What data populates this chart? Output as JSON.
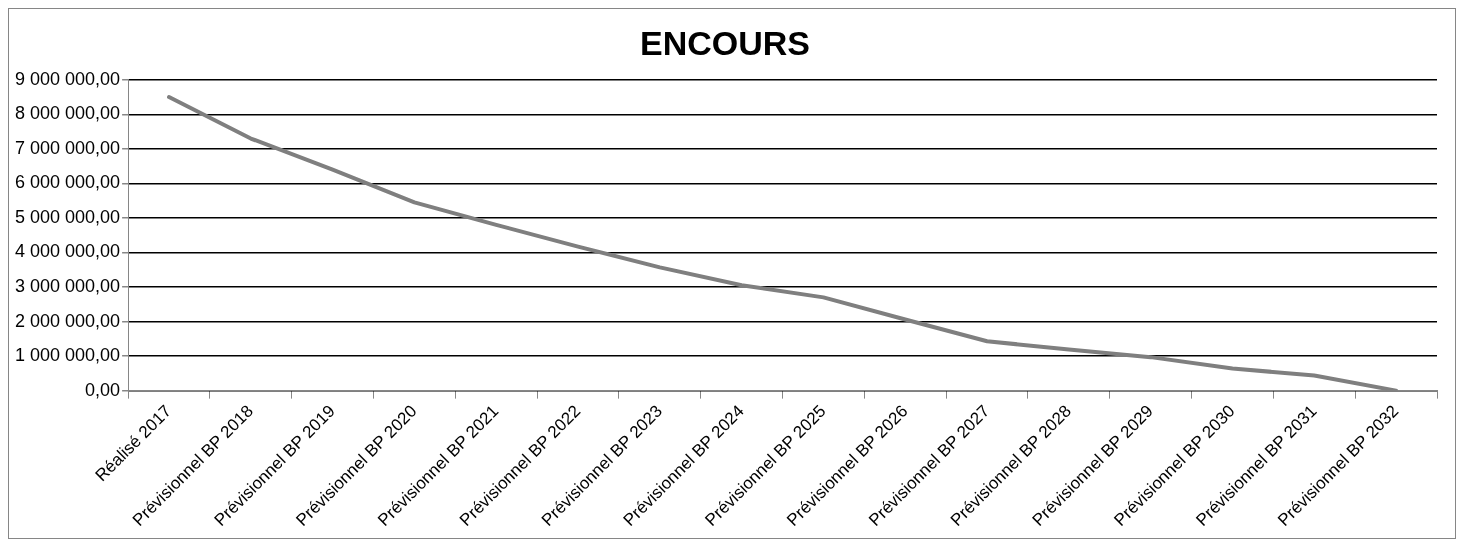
{
  "chart_data": {
    "type": "line",
    "title": "ENCOURS",
    "categories": [
      "Réalisé 2017",
      "Prévisionnel BP 2018",
      "Prévisionnel BP 2019",
      "Prévisionnel BP 2020",
      "Prévisionnel BP 2021",
      "Prévisionnel BP 2022",
      "Prévisionnel BP 2023",
      "Prévisionnel BP 2024",
      "Prévisionnel BP 2025",
      "Prévisionnel BP 2026",
      "Prévisionnel BP 2027",
      "Prévisionnel BP 2028",
      "Prévisionnel BP 2029",
      "Prévisionnel BP 2030",
      "Prévisionnel BP 2031",
      "Prévisionnel BP 2032"
    ],
    "series": [
      {
        "color": "#7f7f7f",
        "values": [
          8500000,
          7300000,
          6400000,
          5450000,
          4800000,
          4170000,
          3570000,
          3050000,
          2700000,
          2060000,
          1430000,
          1190000,
          970000,
          640000,
          440000,
          0
        ]
      }
    ],
    "ylim": [
      0,
      9000000
    ],
    "yticks": [
      {
        "value": 0,
        "label": "0,00"
      },
      {
        "value": 1000000,
        "label": "1 000 000,00"
      },
      {
        "value": 2000000,
        "label": "2 000 000,00"
      },
      {
        "value": 3000000,
        "label": "3 000 000,00"
      },
      {
        "value": 4000000,
        "label": "4 000 000,00"
      },
      {
        "value": 5000000,
        "label": "5 000 000,00"
      },
      {
        "value": 6000000,
        "label": "6 000 000,00"
      },
      {
        "value": 7000000,
        "label": "7 000 000,00"
      },
      {
        "value": 8000000,
        "label": "8 000 000,00"
      },
      {
        "value": 9000000,
        "label": "9 000 000,00"
      }
    ],
    "grid": "y",
    "legend": false,
    "marker": "none",
    "line_style": "solid"
  }
}
